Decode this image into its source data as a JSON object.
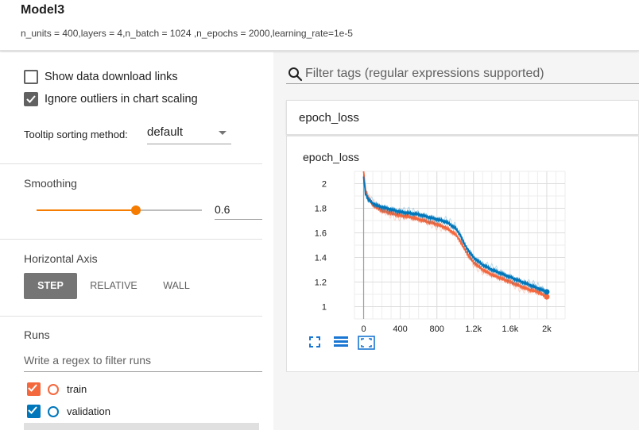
{
  "header": {
    "title": "Model3",
    "subtitle": "n_units = 400,layers = 4,n_batch = 1024 ,n_epochs = 2000,learning_rate=1e-5"
  },
  "sidebar": {
    "show_download_links": {
      "label": "Show data download links",
      "checked": false
    },
    "ignore_outliers": {
      "label": "Ignore outliers in chart scaling",
      "checked": true
    },
    "tooltip_sort": {
      "label": "Tooltip sorting method:",
      "value": "default"
    },
    "smoothing": {
      "title": "Smoothing",
      "value": "0.6",
      "fraction": 0.6
    },
    "horizontal_axis": {
      "title": "Horizontal Axis",
      "options": [
        "STEP",
        "RELATIVE",
        "WALL"
      ],
      "selected": "STEP"
    },
    "runs": {
      "title": "Runs",
      "filter_placeholder": "Write a regex to filter runs",
      "items": [
        {
          "label": "train",
          "checked": true,
          "color": "#f4683e"
        },
        {
          "label": "validation",
          "checked": true,
          "color": "#0077bb"
        }
      ]
    }
  },
  "main": {
    "filter_placeholder": "Filter tags (regular expressions supported)",
    "group_title": "epoch_loss",
    "card_title": "epoch_loss",
    "icons": [
      "fullscreen-icon",
      "toggle-y-log-icon",
      "fit-domain-icon"
    ]
  },
  "chart_data": {
    "type": "line",
    "title": "epoch_loss",
    "xlabel": "",
    "ylabel": "",
    "xlim": [
      -100,
      2200
    ],
    "ylim": [
      0.9,
      2.1
    ],
    "x_ticks": [
      "0",
      "400",
      "800",
      "1.2k",
      "1.6k",
      "2k"
    ],
    "y_ticks": [
      "1",
      "1.2",
      "1.4",
      "1.6",
      "1.8",
      "2"
    ],
    "grid": true,
    "series": [
      {
        "name": "train",
        "color": "#f4683e",
        "x": [
          0,
          20,
          50,
          100,
          150,
          200,
          300,
          400,
          500,
          600,
          700,
          800,
          900,
          1000,
          1050,
          1100,
          1150,
          1200,
          1300,
          1400,
          1500,
          1600,
          1700,
          1800,
          1900,
          2000
        ],
        "y": [
          2.1,
          1.95,
          1.88,
          1.83,
          1.8,
          1.78,
          1.76,
          1.74,
          1.73,
          1.71,
          1.69,
          1.67,
          1.64,
          1.59,
          1.54,
          1.47,
          1.41,
          1.36,
          1.3,
          1.26,
          1.23,
          1.2,
          1.17,
          1.14,
          1.12,
          1.08
        ]
      },
      {
        "name": "validation",
        "color": "#0077bb",
        "x": [
          0,
          20,
          50,
          100,
          150,
          200,
          300,
          400,
          500,
          600,
          700,
          800,
          900,
          1000,
          1050,
          1100,
          1150,
          1200,
          1300,
          1400,
          1500,
          1600,
          1700,
          1800,
          1900,
          2000
        ],
        "y": [
          2.05,
          1.92,
          1.87,
          1.84,
          1.82,
          1.81,
          1.79,
          1.77,
          1.76,
          1.75,
          1.73,
          1.71,
          1.69,
          1.64,
          1.59,
          1.51,
          1.45,
          1.4,
          1.34,
          1.3,
          1.27,
          1.24,
          1.21,
          1.18,
          1.15,
          1.12
        ]
      }
    ]
  }
}
